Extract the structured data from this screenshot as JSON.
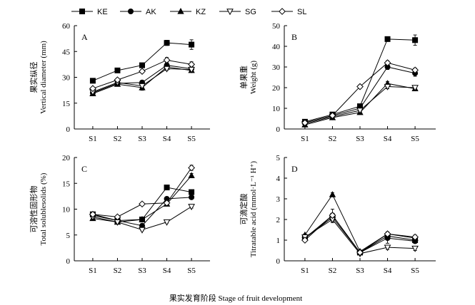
{
  "legend": {
    "entries": [
      {
        "name": "KE",
        "marker": "square"
      },
      {
        "name": "AK",
        "marker": "circle"
      },
      {
        "name": "KZ",
        "marker": "triangle-up"
      },
      {
        "name": "SG",
        "marker": "triangle-down-open"
      },
      {
        "name": "SL",
        "marker": "diamond-open"
      }
    ]
  },
  "figure": {
    "xlabel": "果实发育阶段 Stage of fruit development"
  },
  "chart_data": [
    {
      "type": "line",
      "panel": "A",
      "ylabel_cn": "果实纵径",
      "ylabel_en": "Vertical diameter (mm)",
      "categories": [
        "S1",
        "S2",
        "S3",
        "S4",
        "S5"
      ],
      "ylim": [
        0,
        60
      ],
      "yticks": [
        0,
        15,
        30,
        45,
        60
      ],
      "series": [
        {
          "name": "KE",
          "values": [
            28,
            34,
            37,
            50,
            49
          ],
          "err": [
            0.8,
            0.8,
            0.8,
            1.5,
            2.8
          ]
        },
        {
          "name": "AK",
          "values": [
            21,
            26.5,
            27,
            37,
            35
          ],
          "err": [
            0.8,
            0.8,
            0.8,
            1,
            1
          ]
        },
        {
          "name": "KZ",
          "values": [
            20.5,
            26,
            24,
            36,
            34
          ],
          "err": [
            0.8,
            0.8,
            1.5,
            1,
            1
          ]
        },
        {
          "name": "SG",
          "values": [
            21.5,
            27,
            25,
            35,
            34.5
          ],
          "err": [
            0.8,
            0.8,
            0.8,
            1,
            1
          ]
        },
        {
          "name": "SL",
          "values": [
            23.5,
            28.5,
            33.5,
            40,
            37.5
          ],
          "err": [
            0.8,
            0.8,
            1,
            1.5,
            1.5
          ]
        }
      ]
    },
    {
      "type": "line",
      "panel": "B",
      "ylabel_cn": "单果重",
      "ylabel_en": "Weight (g)",
      "categories": [
        "S1",
        "S2",
        "S3",
        "S4",
        "S5"
      ],
      "ylim": [
        0,
        50
      ],
      "yticks": [
        0,
        10,
        20,
        30,
        40,
        50
      ],
      "series": [
        {
          "name": "KE",
          "values": [
            3.5,
            7,
            11,
            43.5,
            43
          ],
          "err": [
            0.3,
            0.5,
            0.8,
            1,
            2.5
          ]
        },
        {
          "name": "AK",
          "values": [
            3,
            6.5,
            10,
            30,
            27
          ],
          "err": [
            0.3,
            0.5,
            0.8,
            1.2,
            1.5
          ]
        },
        {
          "name": "KZ",
          "values": [
            2,
            5.5,
            8,
            22,
            19.5
          ],
          "err": [
            0.3,
            0.4,
            0.5,
            1,
            1
          ]
        },
        {
          "name": "SG",
          "values": [
            2.5,
            6,
            9,
            20.5,
            20
          ],
          "err": [
            0.3,
            0.4,
            0.5,
            1,
            1
          ]
        },
        {
          "name": "SL",
          "values": [
            3,
            6.5,
            20.5,
            32,
            28.5
          ],
          "err": [
            0.3,
            0.5,
            0.8,
            1,
            1
          ]
        }
      ]
    },
    {
      "type": "line",
      "panel": "C",
      "ylabel_cn": "可溶性固形物",
      "ylabel_en": "Total solublesolids (%)",
      "categories": [
        "S1",
        "S2",
        "S3",
        "S4",
        "S5"
      ],
      "ylim": [
        0,
        20
      ],
      "yticks": [
        0,
        5,
        10,
        15,
        20
      ],
      "series": [
        {
          "name": "KE",
          "values": [
            9,
            7.8,
            8,
            14.2,
            13.3
          ],
          "err": [
            0.3,
            0.2,
            0.2,
            0.3,
            0.3
          ]
        },
        {
          "name": "AK",
          "values": [
            8.8,
            7.8,
            6.8,
            12,
            12.3
          ],
          "err": [
            0.3,
            0.2,
            0.2,
            0.3,
            0.3
          ]
        },
        {
          "name": "KZ",
          "values": [
            8.2,
            7.5,
            8,
            11,
            16.5
          ],
          "err": [
            0.3,
            0.2,
            0.2,
            0.3,
            0.4
          ]
        },
        {
          "name": "SG",
          "values": [
            8.5,
            7.5,
            6,
            7.5,
            10.5
          ],
          "err": [
            0.3,
            0.2,
            0.2,
            0.2,
            0.3
          ]
        },
        {
          "name": "SL",
          "values": [
            9,
            8.5,
            11,
            11.2,
            18
          ],
          "err": [
            0.3,
            0.2,
            0.2,
            0.3,
            0.5
          ]
        }
      ]
    },
    {
      "type": "line",
      "panel": "D",
      "ylabel_cn": "可滴定酸",
      "ylabel_en": "Titratable acid (mmol·L⁻¹ H⁺)",
      "categories": [
        "S1",
        "S2",
        "S3",
        "S4",
        "S5"
      ],
      "ylim": [
        0,
        5
      ],
      "yticks": [
        0,
        1,
        2,
        3,
        4,
        5
      ],
      "series": [
        {
          "name": "KE",
          "values": [
            1.1,
            2.1,
            0.4,
            1.2,
            1.0
          ],
          "err": [
            0.05,
            0.1,
            0.05,
            0.1,
            0.1
          ]
        },
        {
          "name": "AK",
          "values": [
            1.1,
            2.2,
            0.4,
            1.1,
            0.95
          ],
          "err": [
            0.05,
            0.3,
            0.05,
            0.25,
            0.1
          ]
        },
        {
          "name": "KZ",
          "values": [
            1.25,
            3.2,
            0.45,
            1.3,
            1.1
          ],
          "err": [
            0.05,
            0.1,
            0.05,
            0.1,
            0.1
          ]
        },
        {
          "name": "SG",
          "values": [
            1.15,
            2.0,
            0.35,
            0.65,
            0.6
          ],
          "err": [
            0.05,
            0.15,
            0.05,
            0.1,
            0.1
          ]
        },
        {
          "name": "SL",
          "values": [
            1.0,
            2.2,
            0.4,
            1.3,
            1.15
          ],
          "err": [
            0.05,
            0.1,
            0.05,
            0.1,
            0.1
          ]
        }
      ]
    }
  ]
}
